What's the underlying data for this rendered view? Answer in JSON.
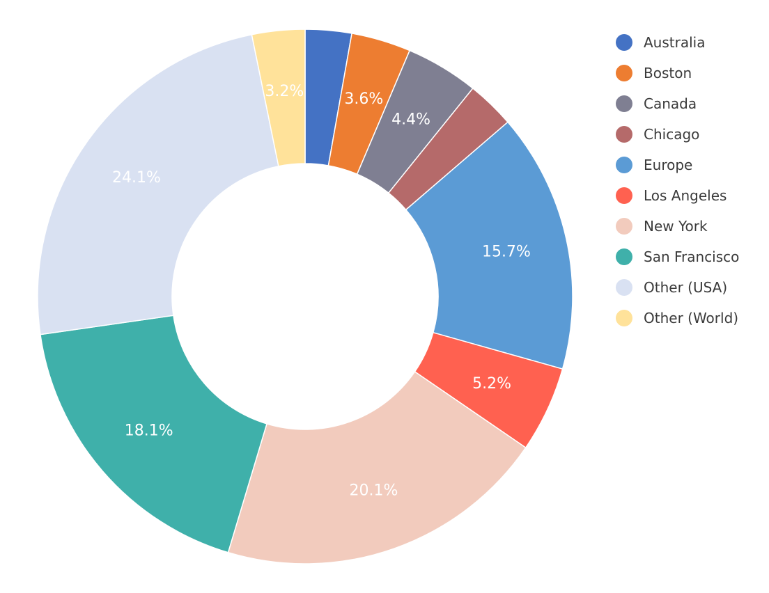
{
  "chart_data": {
    "type": "pie",
    "variant": "donut",
    "legend_position": "right",
    "categories": [
      "Australia",
      "Boston",
      "Canada",
      "Chicago",
      "Europe",
      "Los Angeles",
      "New York",
      "San Francisco",
      "Other (USA)",
      "Other (World)"
    ],
    "values": [
      2.8,
      3.6,
      4.4,
      2.9,
      15.7,
      5.2,
      20.1,
      18.1,
      24.1,
      3.2
    ],
    "data_labels": [
      "",
      "3.6%",
      "4.4%",
      "",
      "15.7%",
      "5.2%",
      "20.1%",
      "18.1%",
      "24.1%",
      "3.2%"
    ],
    "colors": [
      "#4472c4",
      "#ed7d31",
      "#7f7f92",
      "#b56a6a",
      "#5b9bd5",
      "#ff6150",
      "#f2cbbd",
      "#3fb0aa",
      "#d9e1f2",
      "#ffe29a"
    ]
  }
}
